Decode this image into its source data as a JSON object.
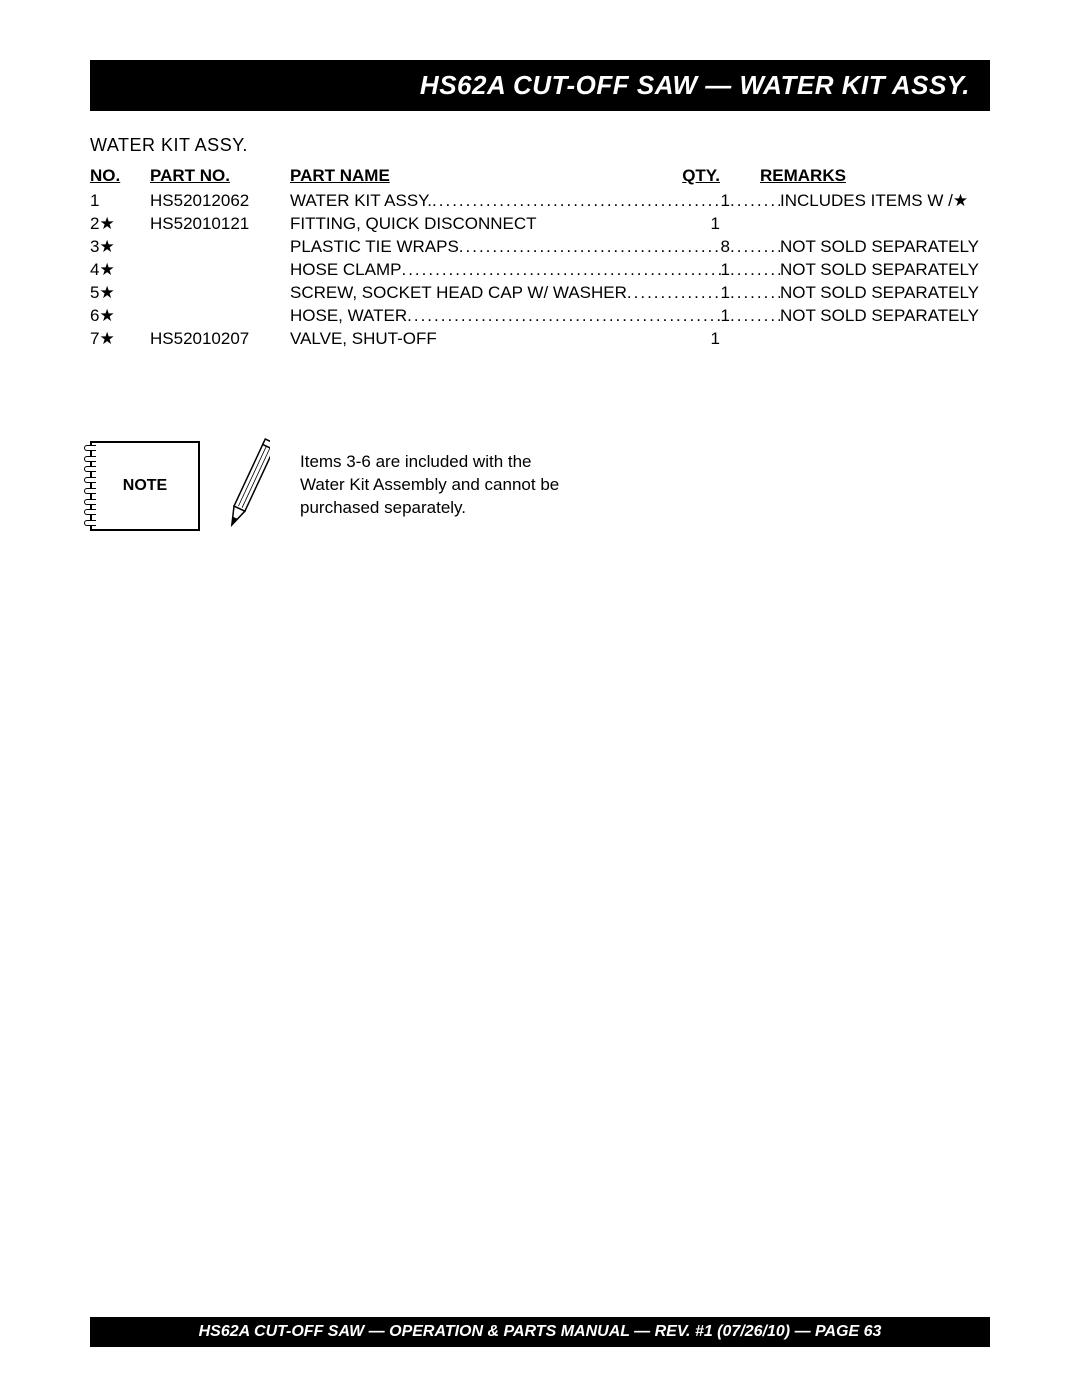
{
  "header": {
    "title": "HS62A CUT-OFF SAW — WATER KIT ASSY."
  },
  "section_title": "WATER KIT ASSY.",
  "columns": {
    "no": "NO.",
    "part_no": "PART NO.",
    "part_name": "PART NAME",
    "qty": "QTY.",
    "remarks": "REMARKS"
  },
  "rows": [
    {
      "no": "1",
      "star": false,
      "part_no": "HS52012062",
      "name": "WATER KIT ASSY.",
      "qty": "1",
      "remarks": "INCLUDES ITEMS W /★",
      "dotted": true
    },
    {
      "no": "2",
      "star": true,
      "part_no": "HS52010121",
      "name": "FITTING, QUICK DISCONNECT",
      "qty": "1",
      "remarks": "",
      "dotted": false
    },
    {
      "no": "3",
      "star": true,
      "part_no": "",
      "name": "PLASTIC TIE WRAPS",
      "qty": "8",
      "remarks": "NOT SOLD SEPARATELY",
      "dotted": true
    },
    {
      "no": "4",
      "star": true,
      "part_no": "",
      "name": "HOSE CLAMP",
      "qty": "1",
      "remarks": "NOT SOLD SEPARATELY",
      "dotted": true
    },
    {
      "no": "5",
      "star": true,
      "part_no": "",
      "name": "SCREW, SOCKET HEAD CAP W/ WASHER",
      "qty": "1",
      "remarks": "NOT SOLD SEPARATELY",
      "dotted": true
    },
    {
      "no": "6",
      "star": true,
      "part_no": "",
      "name": "HOSE, WATER",
      "qty": "1",
      "remarks": "NOT SOLD SEPARATELY",
      "dotted": true
    },
    {
      "no": "7",
      "star": true,
      "part_no": "HS52010207",
      "name": "VALVE, SHUT-OFF",
      "qty": "1",
      "remarks": "",
      "dotted": false
    }
  ],
  "note": {
    "label": "NOTE",
    "text_line1": "Items 3-6 are included with the",
    "text_line2": "Water Kit Assembly and cannot be",
    "text_line3": "purchased separately."
  },
  "footer": {
    "text": "HS62A CUT-OFF SAW  — OPERATION & PARTS MANUAL — REV. #1 (07/26/10) — PAGE 63"
  },
  "colors": {
    "header_bg": "#000000",
    "header_fg": "#ffffff",
    "page_bg": "#ffffff",
    "text": "#000000"
  },
  "typography": {
    "header_fontsize": 26,
    "body_fontsize": 17,
    "footer_fontsize": 16
  }
}
